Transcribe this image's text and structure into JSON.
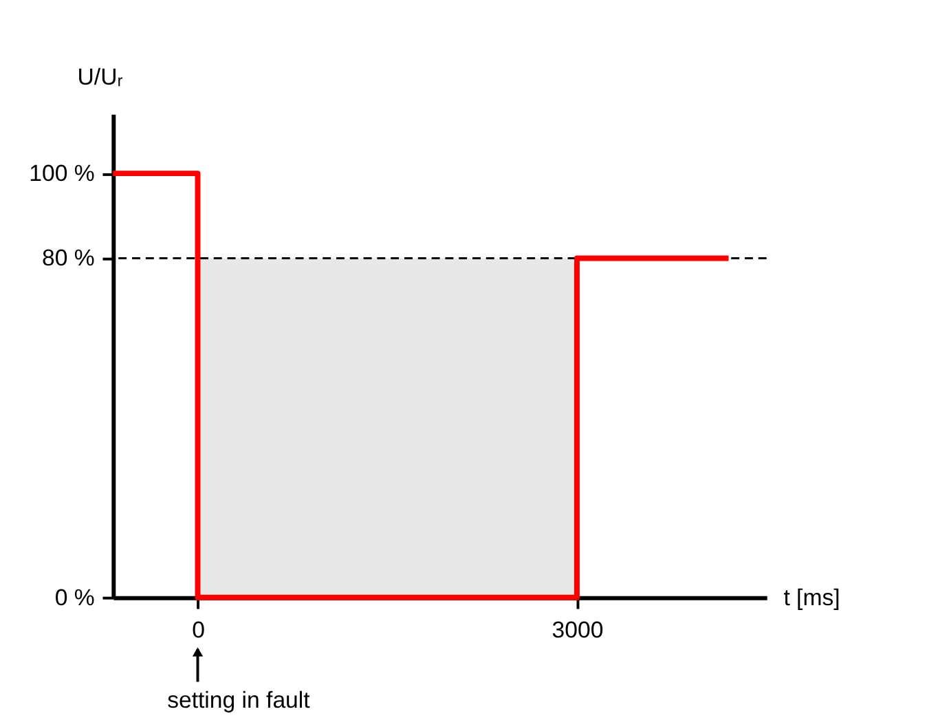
{
  "chart_data": {
    "type": "step",
    "xlabel": "t [ms]",
    "ylabel": "U/Uᵣ",
    "xlim": [
      -670,
      4500
    ],
    "ylim": [
      0,
      114
    ],
    "xticks": [
      0,
      3000
    ],
    "yticks": [
      {
        "value": 0,
        "label": "0 %"
      },
      {
        "value": 80,
        "label": "80 %"
      },
      {
        "value": 100,
        "label": "100 %"
      }
    ],
    "grid": false,
    "marker": "none",
    "line_style": "solid",
    "series": [
      {
        "type": "area",
        "color": "#e8e8e8",
        "x": [
          0,
          3000
        ],
        "values": [
          80,
          80
        ]
      },
      {
        "color": "#ff0000",
        "x": [
          -670,
          0,
          3000,
          4200
        ],
        "values": [
          100,
          0,
          80,
          80
        ]
      }
    ],
    "ref_lines": [
      {
        "axis": "y",
        "value": 80,
        "label": null,
        "color": "#000000",
        "line_style": "dashed"
      }
    ],
    "annotations": [
      "setting in fault"
    ]
  }
}
